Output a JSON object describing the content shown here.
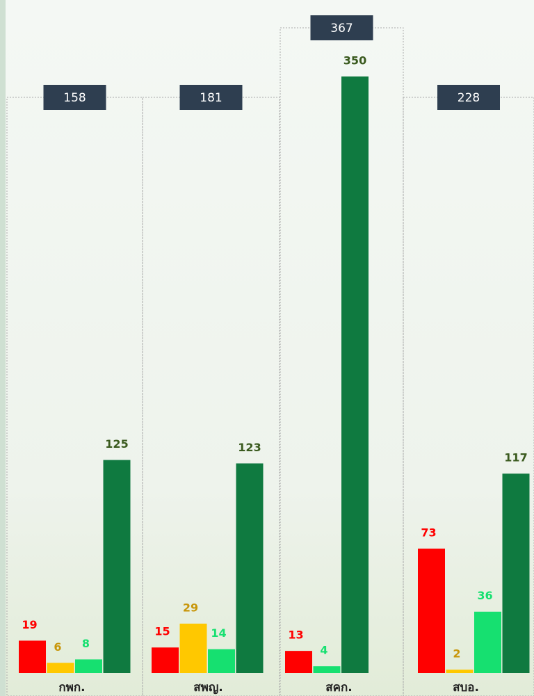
{
  "chart_data": {
    "type": "bar",
    "categories": [
      "กพก.",
      "สพญ.",
      "สคก.",
      "สบอ."
    ],
    "totals": [
      158,
      181,
      367,
      228
    ],
    "series": [
      {
        "color": "#ff0000",
        "label_color": "#ff0000",
        "values": [
          19,
          15,
          13,
          73
        ]
      },
      {
        "color": "#ffc800",
        "label_color": "#c8960a",
        "values": [
          6,
          29,
          null,
          2
        ]
      },
      {
        "color": "#16e070",
        "label_color": "#16e070",
        "values": [
          8,
          14,
          4,
          36
        ]
      },
      {
        "color": "#0f7a40",
        "label_color": "#3a5a1e",
        "values": [
          125,
          123,
          350,
          117
        ]
      }
    ]
  }
}
